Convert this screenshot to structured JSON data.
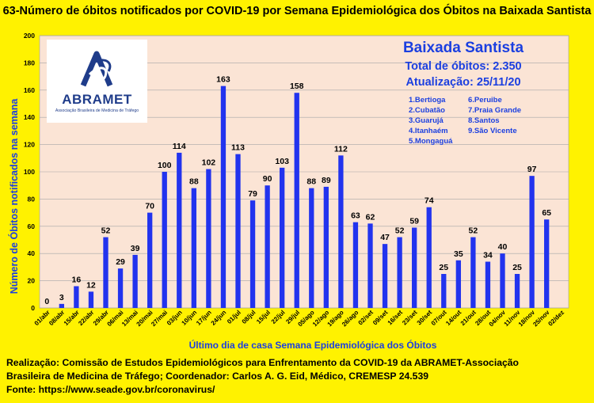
{
  "title": "63-Número de óbitos notificados por COVID-19 por Semana Epidemiológica dos Óbitos na Baixada Santista",
  "logo": {
    "name": "ABRAMET",
    "subtitle": "Associação Brasileira de Medicina de Tráfego"
  },
  "info": {
    "title": "Baixada Santista",
    "total": "Total de óbitos: 2.350",
    "update": "Atualização: 25/11/20",
    "cities": [
      "1.Bertioga",
      "2.Cubatão",
      "3.Guarujá",
      "4.Itanhaém",
      "5.Mongaguá",
      "6.Peruibe",
      "7.Praia Grande",
      "8.Santos",
      "9.São Vicente"
    ]
  },
  "footer": {
    "line1": "Realização: Comissão de Estudos Epidemiológicos para Enfrentamento da COVID-19 da ABRAMET-Associação",
    "line2": "Brasileira de Medicina de Tráfego; Coordenador: Carlos A. G. Eid, Médico, CREMESP 24.539",
    "line3": "Fonte: https://www.seade.gov.br/coronavirus/"
  },
  "colors": {
    "background": "#fff200",
    "plot_area": "#fbe4d5",
    "bar": "#2233ee",
    "accent_text": "#1b3fe0"
  },
  "chart_data": {
    "type": "bar",
    "xlabel": "Último dia de casa Semana Epidemiológica dos Óbitos",
    "ylabel": "Número de Óbitos notificados na semana",
    "ylim": [
      0,
      200
    ],
    "yticks": [
      0,
      20,
      40,
      60,
      80,
      100,
      120,
      140,
      160,
      180,
      200
    ],
    "grid": true,
    "categories": [
      "01/abr",
      "08/abr",
      "15/abr",
      "22/abr",
      "29/abr",
      "06/mai",
      "13/mai",
      "20/mai",
      "27/mai",
      "03/jun",
      "10/jun",
      "17/jun",
      "24/jun",
      "01/jul",
      "08/jul",
      "15/jul",
      "22/jul",
      "29/jul",
      "05/ago",
      "12/ago",
      "19/ago",
      "26/ago",
      "02/set",
      "09/set",
      "16/set",
      "23/set",
      "30/set",
      "07/out",
      "14/out",
      "21/out",
      "28/out",
      "04/nov",
      "11/nov",
      "18/nov",
      "25/nov",
      "02/dez"
    ],
    "values": [
      0,
      3,
      16,
      12,
      52,
      29,
      39,
      70,
      100,
      114,
      88,
      102,
      163,
      113,
      79,
      90,
      103,
      158,
      88,
      89,
      112,
      63,
      62,
      47,
      52,
      59,
      74,
      25,
      35,
      52,
      34,
      40,
      25,
      97,
      65,
      null
    ],
    "data_labels": [
      "0",
      "3",
      "16",
      "12",
      "52",
      "29",
      "39",
      "70",
      "100",
      "114",
      "88",
      "102",
      "163",
      "113",
      "79",
      "90",
      "103",
      "158",
      "88",
      "89",
      "112",
      "63",
      "62",
      "47",
      "52",
      "59",
      "74",
      "25",
      "35",
      "52",
      "34",
      "40",
      "25",
      "97",
      "65",
      ""
    ]
  }
}
